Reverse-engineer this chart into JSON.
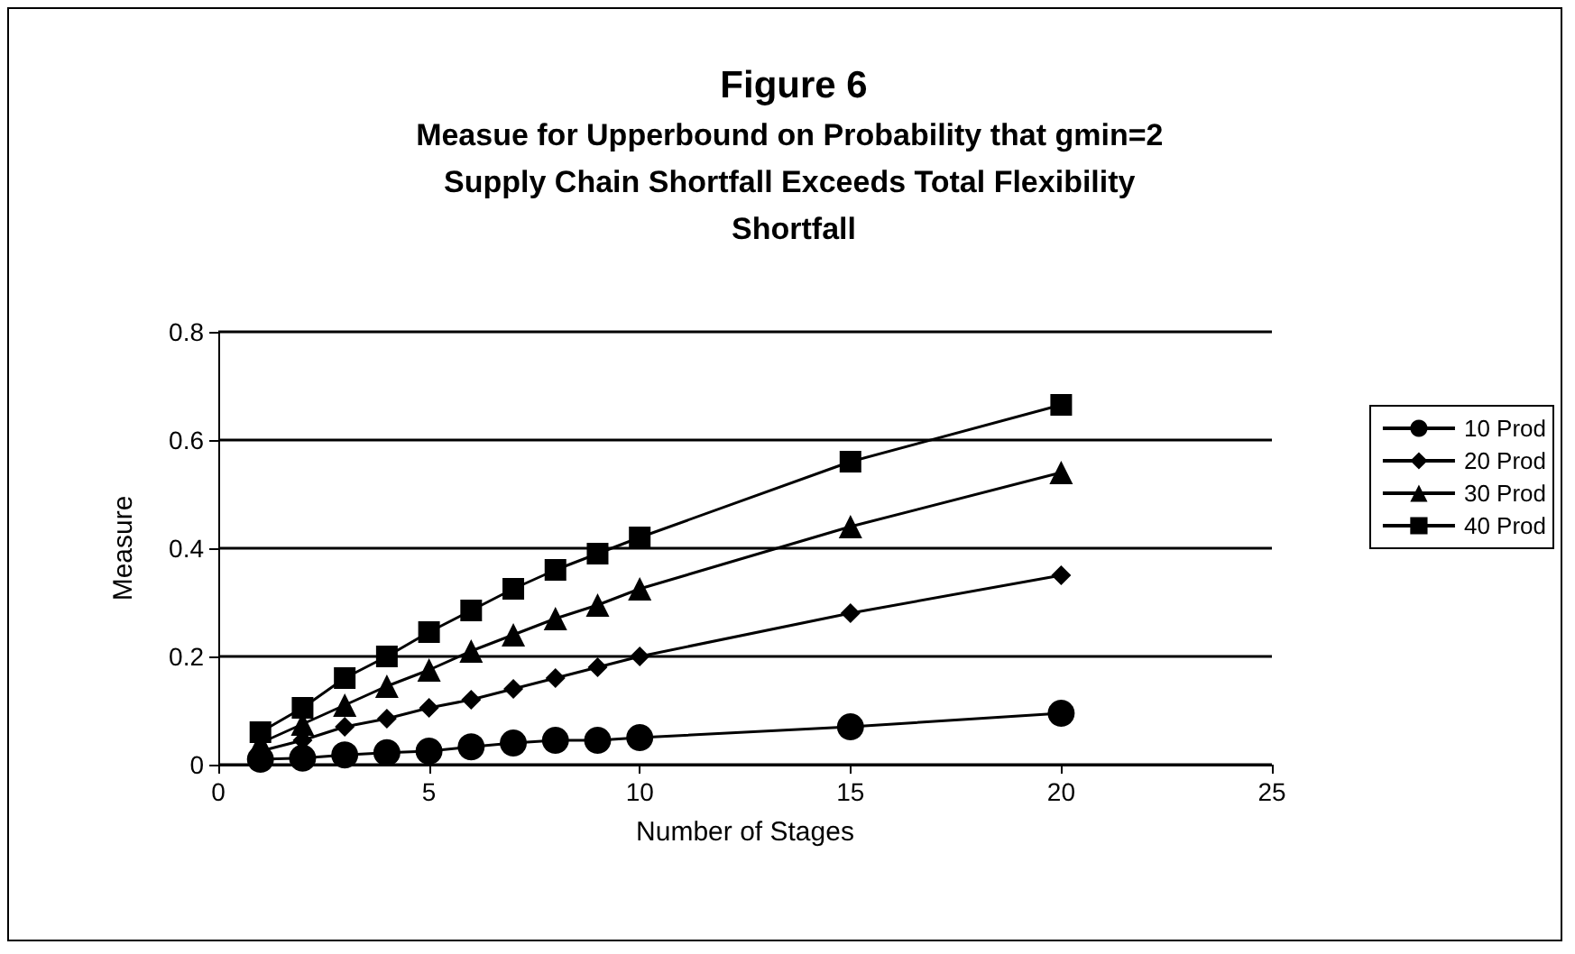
{
  "chart_data": {
    "type": "line",
    "title": "Figure 6",
    "subtitle": "Measue for Upperbound on Probability that gmin=2 Supply Chain Shortfall Exceeds Total Flexibility Shortfall",
    "xlabel": "Number of Stages",
    "ylabel": "Measure",
    "x": [
      1,
      2,
      3,
      4,
      5,
      6,
      7,
      8,
      9,
      10,
      15,
      20
    ],
    "series": [
      {
        "name": "10 Prod",
        "color": "#000000",
        "marker": "circle",
        "values": [
          0.01,
          0.012,
          0.018,
          0.022,
          0.025,
          0.033,
          0.04,
          0.045,
          0.045,
          0.05,
          0.07,
          0.095
        ]
      },
      {
        "name": "20 Prod",
        "color": "#000000",
        "marker": "diamond",
        "values": [
          0.025,
          0.045,
          0.07,
          0.085,
          0.105,
          0.12,
          0.14,
          0.16,
          0.18,
          0.2,
          0.28,
          0.35
        ]
      },
      {
        "name": "30 Prod",
        "color": "#000000",
        "marker": "triangle",
        "values": [
          0.04,
          0.075,
          0.11,
          0.145,
          0.175,
          0.21,
          0.24,
          0.27,
          0.295,
          0.325,
          0.44,
          0.54
        ]
      },
      {
        "name": "40 Prod",
        "color": "#000000",
        "marker": "square",
        "values": [
          0.06,
          0.105,
          0.16,
          0.2,
          0.245,
          0.285,
          0.325,
          0.36,
          0.39,
          0.42,
          0.56,
          0.665
        ]
      }
    ],
    "xlim": [
      0,
      25
    ],
    "xticks": [
      0,
      5,
      10,
      15,
      20,
      25
    ],
    "ylim": [
      0,
      0.8
    ],
    "yticks": [
      0,
      0.2,
      0.4,
      0.6,
      0.8
    ],
    "grid": "y",
    "legend": "right"
  }
}
